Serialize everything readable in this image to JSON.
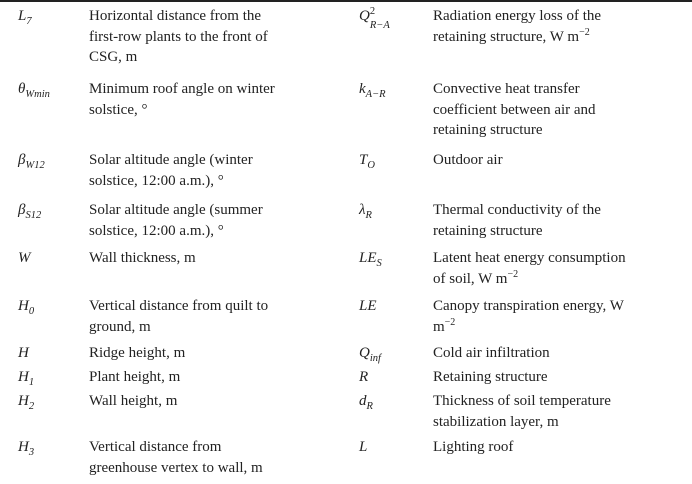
{
  "nomenclature": {
    "rows": [
      {
        "left": {
          "base": "L",
          "sub": "7",
          "desc": [
            "Horizontal distance from the",
            "first-row plants to the front of",
            "CSG, m"
          ]
        },
        "right": {
          "base": "Q",
          "sup": "2",
          "sub": "R−A",
          "desc": [
            "Radiation energy loss of the",
            "retaining structure, W m"
          ],
          "desc_sup": "−2"
        }
      },
      {
        "left": {
          "base": "θ",
          "sub": "Wmin",
          "desc": [
            "Minimum roof angle on winter",
            "solstice, °"
          ]
        },
        "right": {
          "base": "k",
          "sub": "A−R",
          "desc": [
            "Convective heat transfer",
            "coefficient between air and",
            "retaining structure"
          ]
        }
      },
      {
        "left": {
          "base": "β",
          "sub": "W12",
          "desc": [
            "Solar altitude angle (winter",
            "solstice, 12:00 a.m.), °"
          ]
        },
        "right": {
          "base": "T",
          "sub": "O",
          "desc": [
            "Outdoor air"
          ]
        }
      },
      {
        "left": {
          "base": "β",
          "sub": "S12",
          "desc": [
            "Solar altitude angle (summer",
            "solstice, 12:00 a.m.), °"
          ]
        },
        "right": {
          "base": "λ",
          "sub": "R",
          "desc": [
            "Thermal conductivity of the",
            "retaining structure"
          ]
        }
      },
      {
        "left": {
          "base": "W",
          "desc": [
            "Wall thickness, m"
          ]
        },
        "right": {
          "base": "LE",
          "sub": "S",
          "desc": [
            "Latent heat energy consumption",
            "of soil, W m"
          ],
          "desc_sup": "−2"
        }
      },
      {
        "left": {
          "base": "H",
          "sub": "0",
          "desc": [
            "Vertical distance from quilt to",
            "ground, m"
          ]
        },
        "right": {
          "base": "LE",
          "desc": [
            "Canopy transpiration energy, W",
            "m"
          ],
          "desc_sup": "−2"
        }
      },
      {
        "left": {
          "base": "H",
          "desc": [
            "Ridge height, m"
          ]
        },
        "right": {
          "base": "Q",
          "sub": "inf",
          "desc": [
            "Cold air infiltration"
          ]
        }
      },
      {
        "left": {
          "base": "H",
          "sub": "1",
          "desc": [
            "Plant height, m"
          ]
        },
        "right": {
          "base": "R",
          "desc": [
            "Retaining structure"
          ]
        }
      },
      {
        "left": {
          "base": "H",
          "sub": "2",
          "desc": [
            "Wall height, m"
          ]
        },
        "right": {
          "base": "d",
          "sub": "R",
          "desc": [
            "Thickness of soil temperature",
            "stabilization layer, m"
          ]
        }
      },
      {
        "left": {
          "base": "H",
          "sub": "3",
          "desc": [
            "Vertical distance from",
            "greenhouse vertex to wall, m"
          ]
        },
        "right": {
          "base": "L",
          "desc": [
            "Lighting roof"
          ]
        }
      }
    ]
  }
}
